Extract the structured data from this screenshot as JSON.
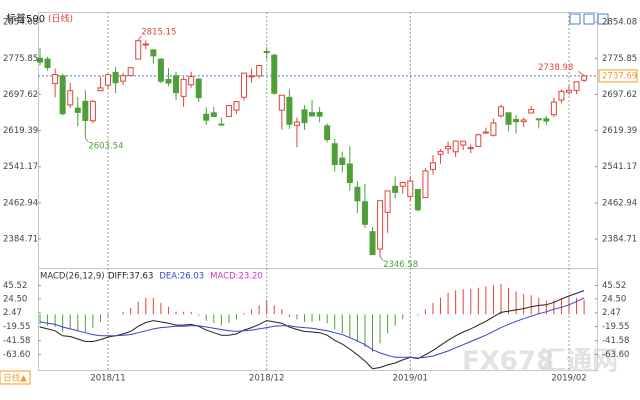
{
  "header": {
    "title": "标普500",
    "period": "(日线)"
  },
  "footer": {
    "period_button": "日线▲",
    "watermark": "FX678",
    "watermark_cn": "汇通网"
  },
  "chart_data": {
    "type": "candlestick",
    "up_color": "#e0443c",
    "down_color": "#4e9e3a",
    "last_line_color": "#4a7fd0",
    "last_label_color": "#f39a2b",
    "categories": [
      null,
      null,
      null,
      null,
      null,
      null,
      null,
      null,
      null,
      "2018/11",
      null,
      null,
      null,
      null,
      null,
      null,
      null,
      null,
      null,
      null,
      null,
      null,
      null,
      null,
      null,
      null,
      null,
      null,
      null,
      null,
      "2018/12",
      null,
      null,
      null,
      null,
      null,
      null,
      null,
      null,
      null,
      null,
      null,
      null,
      null,
      null,
      null,
      null,
      null,
      null,
      "2019/01",
      null,
      null,
      null,
      null,
      null,
      null,
      null,
      null,
      null,
      null,
      null,
      null,
      null,
      null,
      null,
      null,
      null,
      null,
      null,
      null,
      "2019/02",
      null,
      null
    ],
    "open": [
      2775.66,
      2773.94,
      2721.03,
      2737.87,
      2674.88,
      2667.86,
      2682.65,
      2640.68,
      2705.6,
      2717.58,
      2745.45,
      2726.37,
      2738.4,
      2774.13,
      2806.38,
      2794.1,
      2773.93,
      2730.05,
      2737.9,
      2693.52,
      2718.54,
      2730.74,
      2654.6,
      2657.74,
      2633.36,
      2649.97,
      2663.75,
      2691.45,
      2736.97,
      2737.76,
      2790.5,
      2782.43,
      2663.51,
      2691.26,
      2630.86,
      2664.44,
      2658.23,
      2658.7,
      2629.68,
      2590.75,
      2559.9,
      2547.05,
      2496.77,
      2465.38,
      2400.56,
      2363.12,
      2442.5,
      2498.77,
      2498.94,
      2476.96,
      2491.92,
      2474.33,
      2535.61,
      2568.11,
      2580.0,
      2573.51,
      2588.11,
      2580.31,
      2585.1,
      2614.75,
      2609.28,
      2651.27,
      2657.88,
      2643.48,
      2638.84,
      2657.44,
      2644.97,
      2644.89,
      2653.62,
      2685.49,
      2702.32,
      2706.49,
      2728.34
    ],
    "high": [
      2797.77,
      2778.94,
      2753.59,
      2742.59,
      2722.7,
      2692.38,
      2706.85,
      2685.43,
      2736.69,
      2741.67,
      2756.55,
      2744.27,
      2756.82,
      2815.15,
      2814.75,
      2794.1,
      2775.99,
      2754.6,
      2746.8,
      2735.38,
      2746.75,
      2733.16,
      2669.44,
      2670.73,
      2647.55,
      2674.35,
      2682.53,
      2744.0,
      2753.75,
      2760.88,
      2800.18,
      2785.93,
      2696.15,
      2708.54,
      2647.51,
      2674.35,
      2685.44,
      2670.19,
      2635.07,
      2601.13,
      2573.99,
      2585.29,
      2509.63,
      2504.41,
      2410.34,
      2467.76,
      2489.1,
      2520.27,
      2509.24,
      2519.49,
      2493.14,
      2538.07,
      2566.16,
      2579.82,
      2595.32,
      2597.82,
      2596.27,
      2589.32,
      2613.08,
      2625.76,
      2645.06,
      2675.47,
      2657.88,
      2653.19,
      2647.2,
      2672.38,
      2644.97,
      2650.93,
      2690.44,
      2708.95,
      2716.66,
      2724.99,
      2738.98
    ],
    "low": [
      2760.27,
      2749.22,
      2691.43,
      2651.89,
      2667.84,
      2628.16,
      2603.54,
      2635.34,
      2705.6,
      2708.85,
      2700.44,
      2717.94,
      2737.08,
      2774.13,
      2794.99,
      2764.24,
      2722.0,
      2714.98,
      2685.75,
      2670.75,
      2712.16,
      2681.09,
      2631.52,
      2649.82,
      2631.09,
      2649.97,
      2655.89,
      2684.38,
      2722.94,
      2732.76,
      2773.38,
      2697.18,
      2621.53,
      2623.14,
      2583.23,
      2621.3,
      2650.26,
      2637.27,
      2593.84,
      2530.54,
      2528.71,
      2488.96,
      2441.18,
      2408.55,
      2351.1,
      2346.58,
      2397.94,
      2472.89,
      2482.82,
      2467.47,
      2443.96,
      2474.33,
      2524.56,
      2547.56,
      2568.89,
      2562.02,
      2577.4,
      2570.41,
      2585.1,
      2612.68,
      2606.36,
      2647.58,
      2617.27,
      2612.86,
      2627.01,
      2657.33,
      2624.06,
      2631.05,
      2648.34,
      2678.65,
      2696.88,
      2698.75,
      2724.03
    ],
    "close": [
      2767.78,
      2755.88,
      2740.69,
      2656.1,
      2705.57,
      2658.69,
      2641.25,
      2682.63,
      2711.74,
      2740.37,
      2723.06,
      2738.31,
      2755.45,
      2813.89,
      2806.83,
      2781.01,
      2726.22,
      2722.18,
      2701.58,
      2730.2,
      2736.27,
      2690.73,
      2641.89,
      2649.93,
      2632.56,
      2673.45,
      2682.17,
      2743.79,
      2737.8,
      2760.17,
      2790.37,
      2700.06,
      2695.95,
      2633.08,
      2637.72,
      2636.78,
      2651.07,
      2650.54,
      2599.95,
      2545.94,
      2546.16,
      2506.96,
      2467.42,
      2416.58,
      2351.1,
      2467.7,
      2488.83,
      2485.74,
      2506.85,
      2510.03,
      2447.89,
      2531.94,
      2549.69,
      2574.41,
      2584.96,
      2596.64,
      2596.26,
      2582.61,
      2610.3,
      2616.1,
      2635.96,
      2670.71,
      2632.9,
      2638.7,
      2642.33,
      2664.76,
      2643.85,
      2640.0,
      2681.05,
      2704.1,
      2706.53,
      2724.87,
      2737.69
    ],
    "ylim": [
      2322,
      2876
    ],
    "yticks": [
      2854.08,
      2775.85,
      2697.62,
      2619.39,
      2541.17,
      2462.94,
      2384.71
    ],
    "macd": {
      "title": "MACD(26,12,9)",
      "legend": [
        {
          "text": "DIFF:37.63",
          "color": "#222222"
        },
        {
          "text": "DEA:26.03",
          "color": "#3344cc"
        },
        {
          "text": "MACD:23.20",
          "color": "#cc33cc"
        }
      ],
      "ylim": [
        -88,
        70
      ],
      "yticks": [
        45.52,
        {
          "value": 24.5,
          "label": "24.50"
        },
        2.47,
        {
          "value": -19.55,
          "label": "-19.55"
        },
        -41.58,
        {
          "value": -63.6,
          "label": "-63.60"
        }
      ],
      "diff": {
        "color": "#222222",
        "values": [
          -20,
          -23,
          -26,
          -34,
          -35,
          -39,
          -43,
          -43,
          -40,
          -36,
          -34,
          -31,
          -27,
          -19,
          -13,
          -10,
          -12,
          -14,
          -17,
          -17,
          -16,
          -19,
          -25,
          -29,
          -33,
          -33,
          -31,
          -25,
          -21,
          -16,
          -10,
          -12,
          -14,
          -20,
          -24,
          -27,
          -28,
          -29,
          -33,
          -41,
          -47,
          -55,
          -64,
          -74,
          -86,
          -84,
          -80,
          -77,
          -72,
          -68,
          -70,
          -64,
          -57,
          -49,
          -41,
          -34,
          -28,
          -23,
          -17,
          -11,
          -4,
          3,
          5,
          7,
          9,
          12,
          14,
          15,
          19,
          24,
          29,
          33,
          37.63
        ]
      },
      "dea": {
        "color": "#3344cc",
        "values": [
          -12,
          -14,
          -16,
          -20,
          -23,
          -26,
          -29,
          -32,
          -34,
          -34,
          -34,
          -33,
          -32,
          -29,
          -26,
          -23,
          -21,
          -20,
          -19,
          -19,
          -18,
          -18,
          -20,
          -22,
          -24,
          -26,
          -27,
          -26,
          -25,
          -23,
          -21,
          -19,
          -18,
          -18,
          -20,
          -21,
          -22,
          -24,
          -26,
          -29,
          -32,
          -37,
          -42,
          -48,
          -56,
          -61,
          -65,
          -68,
          -68,
          -68,
          -69,
          -68,
          -66,
          -62,
          -58,
          -53,
          -48,
          -43,
          -38,
          -33,
          -27,
          -21,
          -16,
          -11,
          -7,
          -3,
          1,
          4,
          8,
          11,
          15,
          20,
          26.03
        ]
      },
      "hist": {
        "up_color": "#e0443c",
        "down_color": "#4e9e3a",
        "values": [
          -16,
          -18,
          -20,
          -28,
          -24,
          -26,
          -28,
          -22,
          -12,
          -4,
          0,
          4,
          10,
          20,
          26,
          26,
          18,
          12,
          4,
          4,
          4,
          -2,
          -10,
          -14,
          -18,
          -14,
          -8,
          2,
          8,
          14,
          22,
          14,
          8,
          -4,
          -8,
          -12,
          -12,
          -10,
          -14,
          -24,
          -30,
          -36,
          -44,
          -52,
          -60,
          -46,
          -30,
          -18,
          -8,
          0,
          -2,
          8,
          18,
          26,
          34,
          38,
          40,
          40,
          42,
          44,
          46,
          48,
          42,
          36,
          32,
          30,
          26,
          22,
          22,
          26,
          28,
          26,
          23.2
        ]
      }
    }
  }
}
